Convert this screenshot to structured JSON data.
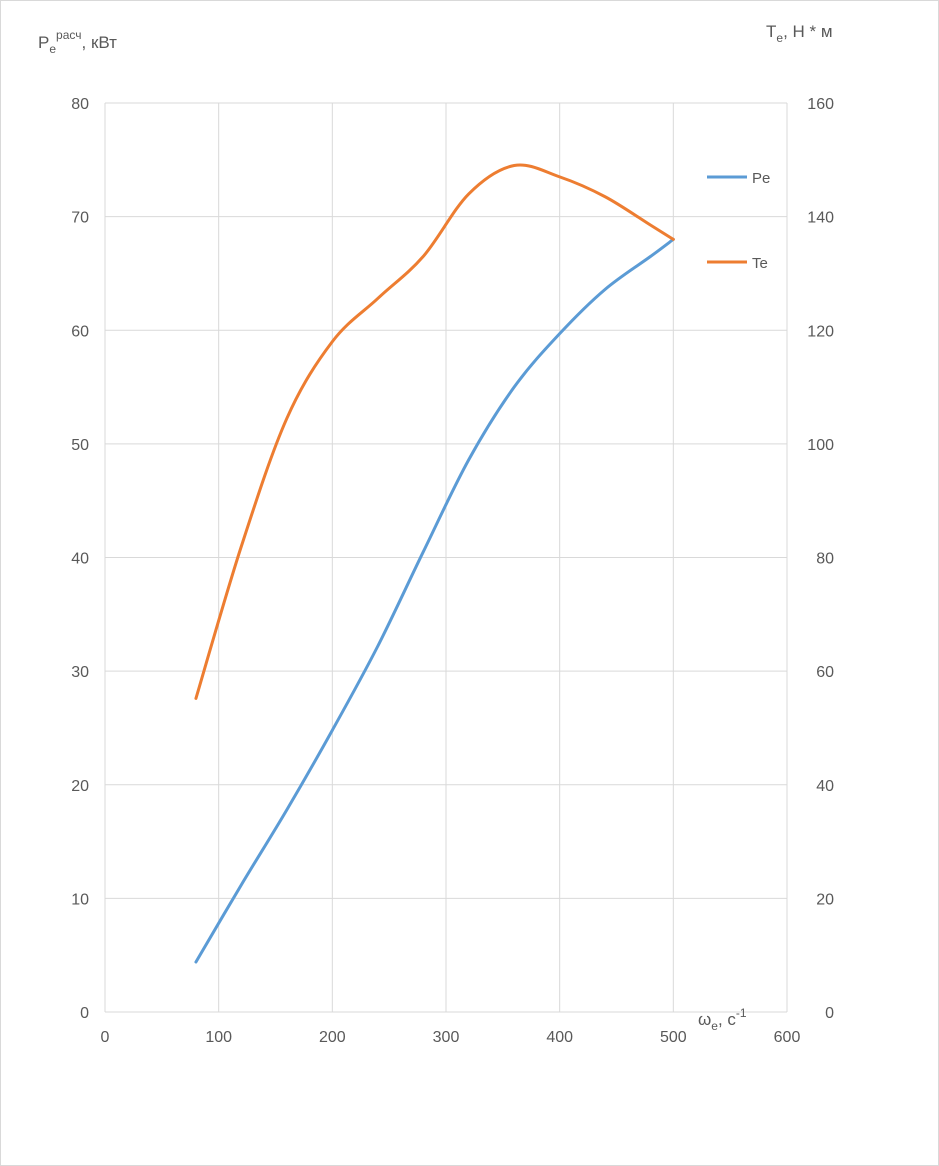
{
  "chart_data": {
    "type": "line",
    "y_left_label": {
      "base": "P",
      "sub": "e",
      "sup": "расч",
      "suffix": ", кВт"
    },
    "y_right_label": {
      "base": "T",
      "sub": "e",
      "suffix": ", Н * м"
    },
    "x_label": {
      "base": "ω",
      "sub": "e",
      "mid": ", с",
      "sup": "-1"
    },
    "xlim": [
      0,
      600
    ],
    "x_ticks": [
      "0",
      "100",
      "200",
      "300",
      "400",
      "500",
      "600"
    ],
    "ylim_left": [
      0,
      80
    ],
    "y_left_ticks": [
      "0",
      "10",
      "20",
      "30",
      "40",
      "50",
      "60",
      "70",
      "80"
    ],
    "ylim_right": [
      0,
      160
    ],
    "y_right_ticks": [
      "0",
      "20",
      "40",
      "60",
      "80",
      "100",
      "120",
      "140",
      "160"
    ],
    "grid": "vertical and horizontal",
    "legend_position": "right",
    "series": [
      {
        "name": "Pe",
        "axis": "left",
        "color": "#5b9bd5",
        "x": [
          80,
          120,
          160,
          200,
          240,
          280,
          320,
          360,
          400,
          440,
          480,
          500
        ],
        "y": [
          4.4,
          11.2,
          17.8,
          24.8,
          32.2,
          40.5,
          48.6,
          55.0,
          59.7,
          63.6,
          66.5,
          68.0
        ]
      },
      {
        "name": "Te",
        "axis": "right",
        "color": "#ed7d31",
        "x": [
          80,
          120,
          160,
          200,
          240,
          280,
          320,
          360,
          400,
          440,
          480,
          500
        ],
        "y": [
          55.2,
          82.0,
          104.5,
          118.0,
          125.6,
          133.0,
          144.0,
          149.0,
          147.0,
          143.5,
          138.5,
          136.0
        ]
      }
    ]
  }
}
